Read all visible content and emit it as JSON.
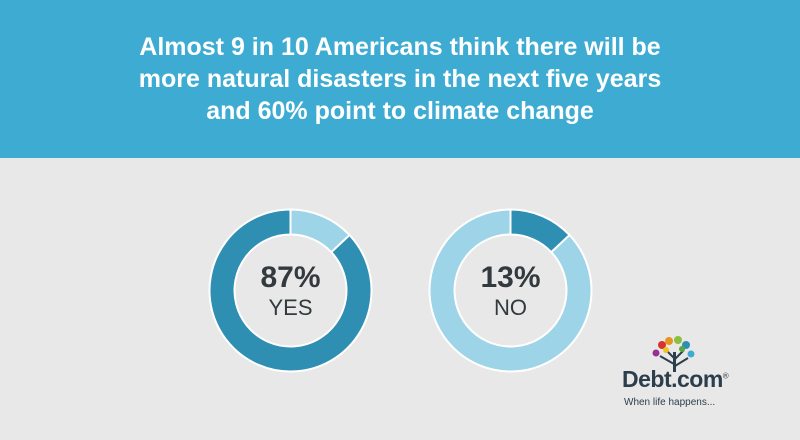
{
  "header": {
    "title_lines": [
      "Almost 9 in 10 Americans think there will be",
      "more natural disasters in the next five years",
      "and 60% point to climate change"
    ]
  },
  "colors": {
    "header_bg": "#3eacd2",
    "background": "#e8e8e8",
    "dark_ring": "#2e8fb3",
    "light_ring": "#9dd4e8",
    "text": "#333a3d"
  },
  "chart_data": [
    {
      "type": "pie",
      "variant": "donut",
      "label": "YES",
      "value_text": "87%",
      "slices": [
        {
          "name": "YES",
          "value": 87,
          "color": "#2e8fb3"
        },
        {
          "name": "NO",
          "value": 13,
          "color": "#9dd4e8"
        }
      ]
    },
    {
      "type": "pie",
      "variant": "donut",
      "label": "NO",
      "value_text": "13%",
      "slices": [
        {
          "name": "NO",
          "value": 13,
          "color": "#2e8fb3"
        },
        {
          "name": "YES",
          "value": 87,
          "color": "#9dd4e8"
        }
      ]
    }
  ],
  "logo": {
    "brand": "Debt.com",
    "registered": "®",
    "tagline": "When life happens..."
  }
}
